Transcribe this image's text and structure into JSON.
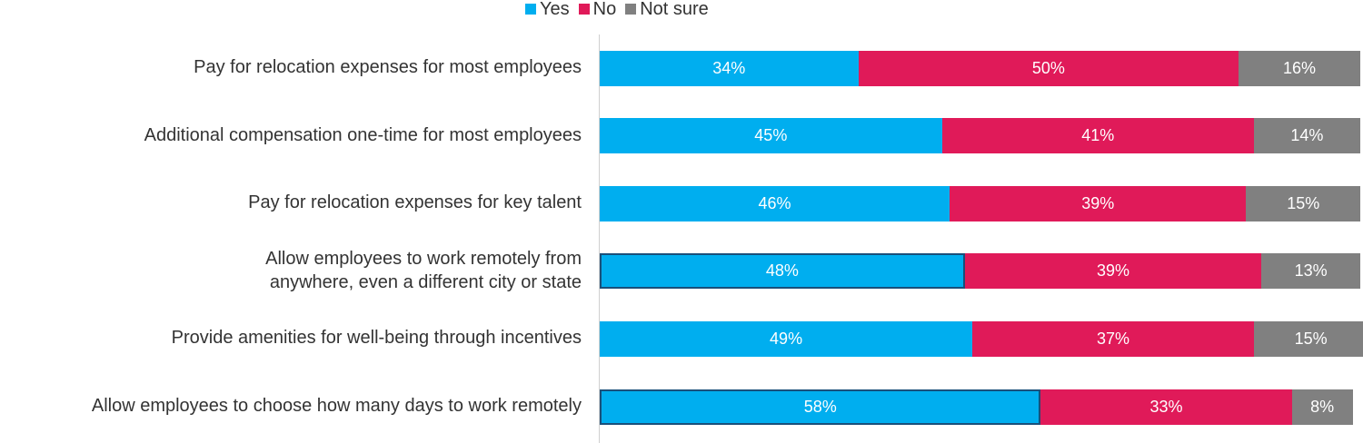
{
  "chart_data": {
    "type": "bar",
    "orientation": "horizontal",
    "stacked": true,
    "percent_stacked": true,
    "categories": [
      "Pay for relocation expenses for most employees",
      "Additional compensation one-time for most employees",
      "Pay for relocation expenses for key talent",
      "Allow employees to work remotely from\nanywhere, even a different city or state",
      "Provide amenities for well-being through incentives",
      "Allow employees to choose how many days to work remotely"
    ],
    "series": [
      {
        "name": "Yes",
        "color": "#00aeef",
        "values": [
          34,
          45,
          46,
          48,
          49,
          58
        ],
        "labels": [
          "34%",
          "45%",
          "46%",
          "48%",
          "49%",
          "58%"
        ]
      },
      {
        "name": "No",
        "color": "#e01a59",
        "values": [
          50,
          41,
          39,
          39,
          37,
          33
        ],
        "labels": [
          "50%",
          "41%",
          "39%",
          "39%",
          "37%",
          "33%"
        ]
      },
      {
        "name": "Not sure",
        "color": "#808080",
        "values": [
          16,
          14,
          15,
          13,
          15,
          8
        ],
        "labels": [
          "16%",
          "14%",
          "15%",
          "13%",
          "15%",
          "8%"
        ]
      }
    ],
    "highlighted_rows": [
      3,
      5
    ],
    "xlim": [
      0,
      100
    ],
    "legend_position": "top",
    "grid": false,
    "title": "",
    "xlabel": "",
    "ylabel": ""
  }
}
